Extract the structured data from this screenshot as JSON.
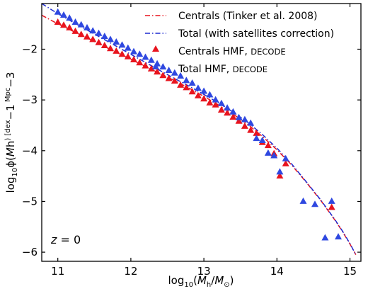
{
  "chart_data": {
    "type": "scatter",
    "xlabel_parts": [
      "log",
      "10",
      "(",
      "M",
      "h",
      "/",
      "M",
      "⊙",
      ")"
    ],
    "ylabel_parts": [
      "log",
      "10",
      "ϕ(",
      "M",
      "h",
      ") [dex",
      "−1",
      " Mpc",
      "−3",
      "]"
    ],
    "annotation_parts": [
      "z",
      " = 0"
    ],
    "xlim": [
      10.78,
      15.15
    ],
    "ylim": [
      -6.18,
      -1.1
    ],
    "x_ticks": [
      11,
      12,
      13,
      14,
      15
    ],
    "x_tick_labels": [
      "11",
      "12",
      "13",
      "14",
      "15"
    ],
    "y_ticks": [
      -2,
      -3,
      -4,
      -5,
      -6
    ],
    "y_tick_labels": [
      "−2",
      "−3",
      "−4",
      "−5",
      "−6"
    ],
    "grid": false,
    "legend_position": "top-right",
    "legend": [
      {
        "label": "Centrals (Tinker et al. 2008)",
        "style": "dashdot-line",
        "color": "#e8141e"
      },
      {
        "label": "Total (with satellites correction)",
        "style": "dashdot-line",
        "color": "#1f2bd0"
      },
      {
        "label_main": "Centrals HMF, ",
        "label_small": "DECODE",
        "style": "triangle",
        "color": "#e8141e"
      },
      {
        "label_main": "Total HMF, ",
        "label_small": "DECODE",
        "style": "triangle",
        "color": "#2f48e0"
      }
    ],
    "series": [
      {
        "name": "Centrals (Tinker et al. 2008)",
        "kind": "line",
        "color": "#e8141e",
        "x": [
          10.78,
          11.0,
          11.2,
          11.4,
          11.6,
          11.8,
          12.0,
          12.2,
          12.4,
          12.6,
          12.8,
          13.0,
          13.2,
          13.4,
          13.6,
          13.8,
          14.0,
          14.2,
          14.4,
          14.6,
          14.8,
          14.9,
          15.0,
          15.08
        ],
        "y": [
          -1.33,
          -1.5,
          -1.64,
          -1.78,
          -1.92,
          -2.06,
          -2.2,
          -2.34,
          -2.48,
          -2.62,
          -2.77,
          -2.93,
          -3.1,
          -3.28,
          -3.48,
          -3.72,
          -3.98,
          -4.28,
          -4.62,
          -4.98,
          -5.38,
          -5.6,
          -5.84,
          -6.05
        ]
      },
      {
        "name": "Total (with satellites correction)",
        "kind": "line",
        "color": "#1f2bd0",
        "x": [
          10.78,
          11.0,
          11.2,
          11.4,
          11.6,
          11.8,
          12.0,
          12.2,
          12.4,
          12.6,
          12.8,
          13.0,
          13.2,
          13.4,
          13.6,
          13.8,
          14.0,
          14.2,
          14.4,
          14.6,
          14.8,
          14.9,
          15.0,
          15.08
        ],
        "y": [
          -1.1,
          -1.3,
          -1.46,
          -1.62,
          -1.78,
          -1.94,
          -2.1,
          -2.26,
          -2.42,
          -2.58,
          -2.73,
          -2.89,
          -3.06,
          -3.24,
          -3.44,
          -3.68,
          -3.95,
          -4.26,
          -4.61,
          -4.97,
          -5.37,
          -5.59,
          -5.83,
          -6.05
        ]
      },
      {
        "name": "Centrals HMF, DECODE",
        "kind": "triangles",
        "color": "#e8141e",
        "x": [
          11.0,
          11.08,
          11.16,
          11.24,
          11.32,
          11.4,
          11.48,
          11.56,
          11.64,
          11.72,
          11.8,
          11.88,
          11.96,
          12.04,
          12.12,
          12.2,
          12.28,
          12.36,
          12.44,
          12.52,
          12.6,
          12.68,
          12.76,
          12.84,
          12.92,
          13.0,
          13.08,
          13.16,
          13.24,
          13.32,
          13.4,
          13.48,
          13.56,
          13.64,
          13.72,
          13.8,
          13.88,
          13.96,
          14.04,
          14.12,
          14.75
        ],
        "y": [
          -1.47,
          -1.53,
          -1.58,
          -1.65,
          -1.71,
          -1.76,
          -1.81,
          -1.87,
          -1.93,
          -1.99,
          -2.04,
          -2.1,
          -2.15,
          -2.21,
          -2.27,
          -2.33,
          -2.39,
          -2.45,
          -2.52,
          -2.58,
          -2.63,
          -2.71,
          -2.76,
          -2.84,
          -2.92,
          -2.98,
          -3.06,
          -3.1,
          -3.2,
          -3.26,
          -3.34,
          -3.42,
          -3.52,
          -3.6,
          -3.66,
          -3.84,
          -3.9,
          -4.06,
          -4.5,
          -4.26,
          -5.12
        ]
      },
      {
        "name": "Total HMF, DECODE",
        "kind": "triangles",
        "color": "#2f48e0",
        "x": [
          11.0,
          11.08,
          11.16,
          11.24,
          11.32,
          11.4,
          11.48,
          11.56,
          11.64,
          11.72,
          11.8,
          11.88,
          11.96,
          12.04,
          12.12,
          12.2,
          12.28,
          12.36,
          12.44,
          12.52,
          12.6,
          12.68,
          12.76,
          12.84,
          12.92,
          13.0,
          13.08,
          13.16,
          13.24,
          13.32,
          13.4,
          13.48,
          13.56,
          13.64,
          13.72,
          13.8,
          13.88,
          13.96,
          14.04,
          14.12,
          14.36,
          14.52,
          14.66,
          14.75,
          14.84
        ],
        "y": [
          -1.27,
          -1.33,
          -1.39,
          -1.47,
          -1.52,
          -1.58,
          -1.64,
          -1.69,
          -1.75,
          -1.81,
          -1.86,
          -1.92,
          -1.98,
          -2.05,
          -2.1,
          -2.16,
          -2.22,
          -2.29,
          -2.35,
          -2.42,
          -2.47,
          -2.53,
          -2.62,
          -2.67,
          -2.77,
          -2.83,
          -2.9,
          -3.0,
          -3.07,
          -3.16,
          -3.24,
          -3.35,
          -3.39,
          -3.46,
          -3.76,
          -3.8,
          -4.05,
          -4.1,
          -4.42,
          -4.16,
          -5.0,
          -5.06,
          -5.72,
          -5.0,
          -5.7
        ]
      }
    ]
  }
}
